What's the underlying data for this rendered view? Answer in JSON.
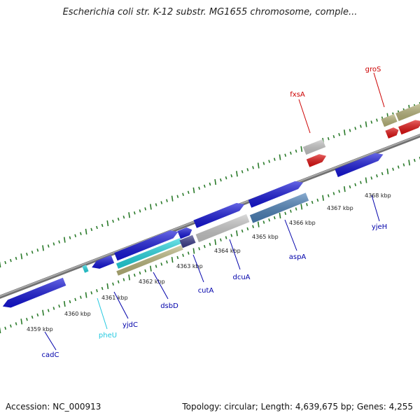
{
  "title": "Escherichia coli str. K-12 substr. MG1655 chromosome, comple...",
  "footer": {
    "accession": "Accession: NC_000913",
    "summary": "Topology: circular; Length: 4,639,675 bp; Genes: 4,255"
  },
  "colors": {
    "backbone": "#8c8c8c",
    "tick": "#2a7a2a",
    "blue_gene": "#1414d8",
    "red_gene": "#e01010",
    "cyan_gene": "#22d6e0",
    "olive_gene": "#b8b47a",
    "gray_gene": "#c8c8c8",
    "steel_gene": "#4a80b8",
    "navy_gene": "#3a3a8a"
  },
  "kbp_labels": [
    "4359 kbp",
    "4360 kbp",
    "4361 kbp",
    "4362 kbp",
    "4363 kbp",
    "4364 kbp",
    "4365 kbp",
    "4366 kbp",
    "4367 kbp",
    "4368 kbp"
  ],
  "gene_labels": [
    {
      "name": "cadC",
      "color": "#0000aa"
    },
    {
      "name": "pheU",
      "color": "#22c8e0"
    },
    {
      "name": "yjdC",
      "color": "#0000aa"
    },
    {
      "name": "dsbD",
      "color": "#0000aa"
    },
    {
      "name": "cutA",
      "color": "#0000aa"
    },
    {
      "name": "dcuA",
      "color": "#0000aa"
    },
    {
      "name": "aspA",
      "color": "#0000aa"
    },
    {
      "name": "yjeH",
      "color": "#0000aa"
    },
    {
      "name": "fxsA",
      "color": "#cc0000"
    },
    {
      "name": "groS",
      "color": "#cc0000"
    }
  ]
}
